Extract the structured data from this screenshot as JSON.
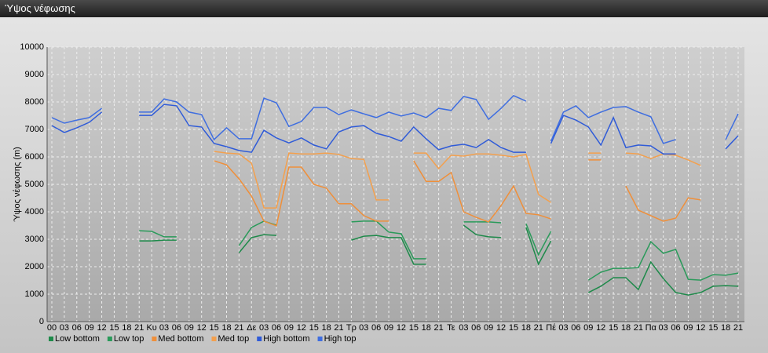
{
  "window_title": "Ύψος νέφωσης",
  "chart_data": {
    "type": "line",
    "ylabel": "Ύψος νέφωσης (m)",
    "categories": [
      "00",
      "03",
      "06",
      "09",
      "12",
      "15",
      "18",
      "21",
      "Κυ",
      "03",
      "06",
      "09",
      "12",
      "15",
      "18",
      "21",
      "Δε",
      "03",
      "06",
      "09",
      "12",
      "15",
      "18",
      "21",
      "Τρ",
      "03",
      "06",
      "09",
      "12",
      "15",
      "18",
      "21",
      "Τε",
      "03",
      "06",
      "09",
      "12",
      "15",
      "18",
      "21",
      "Πέ",
      "03",
      "06",
      "09",
      "12",
      "15",
      "18",
      "21",
      "Πα",
      "03",
      "06",
      "09",
      "12",
      "15",
      "18",
      "21"
    ],
    "ylim": [
      0,
      10000
    ],
    "yticks": [
      0,
      1000,
      2000,
      3000,
      4000,
      5000,
      6000,
      7000,
      8000,
      9000,
      10000
    ],
    "grid": true,
    "legend": "bottom",
    "series": [
      {
        "name": "Low bottom",
        "color": "#1e8a4a",
        "values": [
          null,
          null,
          null,
          null,
          null,
          null,
          null,
          2940,
          2940,
          2970,
          2970,
          null,
          null,
          null,
          null,
          2510,
          3060,
          3170,
          3140,
          null,
          null,
          null,
          null,
          null,
          2970,
          3110,
          3140,
          3060,
          3060,
          2090,
          2090,
          null,
          null,
          3510,
          3170,
          3090,
          3060,
          null,
          3430,
          2090,
          2940,
          null,
          null,
          1060,
          1290,
          1600,
          1600,
          1170,
          2170,
          1570,
          1060,
          970,
          1060,
          1290,
          1310,
          1290
        ]
      },
      {
        "name": "Low top",
        "color": "#2a9a5a",
        "values": [
          null,
          null,
          null,
          null,
          null,
          null,
          null,
          3310,
          3290,
          3090,
          3090,
          null,
          null,
          null,
          null,
          2770,
          3430,
          3660,
          3510,
          null,
          null,
          null,
          null,
          null,
          3630,
          3660,
          3660,
          3260,
          3200,
          2290,
          2290,
          null,
          null,
          3630,
          3630,
          3630,
          3600,
          null,
          3570,
          2430,
          3290,
          null,
          null,
          1510,
          1800,
          1940,
          1940,
          1970,
          2910,
          2490,
          2630,
          1540,
          1510,
          1710,
          1690,
          1770
        ]
      },
      {
        "name": "Med bottom",
        "color": "#ef8f3a",
        "values": [
          null,
          null,
          null,
          null,
          null,
          null,
          null,
          null,
          null,
          null,
          null,
          null,
          null,
          5860,
          5710,
          5200,
          4570,
          3660,
          3490,
          5630,
          5630,
          5000,
          4860,
          4290,
          4290,
          3860,
          3660,
          3660,
          null,
          5860,
          5110,
          5110,
          5430,
          4000,
          3800,
          3630,
          4230,
          4940,
          3940,
          3890,
          3740,
          null,
          null,
          5890,
          5890,
          null,
          4940,
          4060,
          3860,
          3660,
          3770,
          4510,
          4430,
          null,
          null,
          null
        ]
      },
      {
        "name": "Med top",
        "color": "#f3a04e",
        "values": [
          null,
          null,
          null,
          null,
          null,
          null,
          null,
          null,
          null,
          null,
          null,
          null,
          null,
          6200,
          6140,
          6110,
          5770,
          4140,
          4140,
          6140,
          6110,
          6110,
          6140,
          6090,
          5940,
          5910,
          4430,
          4430,
          null,
          6140,
          6140,
          5570,
          6060,
          6030,
          6110,
          6110,
          6060,
          6000,
          6090,
          4630,
          4340,
          null,
          null,
          6140,
          6140,
          null,
          6140,
          6110,
          5940,
          6110,
          6060,
          5890,
          5690,
          null,
          null,
          null
        ]
      },
      {
        "name": "High bottom",
        "color": "#2f5bd8",
        "values": [
          7140,
          6890,
          7060,
          7260,
          7630,
          null,
          null,
          7510,
          7510,
          7910,
          7860,
          7140,
          7090,
          6490,
          6370,
          6230,
          6170,
          6970,
          6690,
          6510,
          6690,
          6430,
          6290,
          6910,
          7090,
          7140,
          6860,
          6740,
          6570,
          7090,
          6660,
          6260,
          6400,
          6460,
          6340,
          6630,
          6340,
          6170,
          6170,
          null,
          6490,
          7510,
          7340,
          7090,
          6430,
          7430,
          6340,
          6430,
          6400,
          6110,
          6110,
          null,
          null,
          null,
          6290,
          6770
        ]
      },
      {
        "name": "High top",
        "color": "#3f6ee0",
        "values": [
          7430,
          7230,
          7340,
          7430,
          7770,
          null,
          null,
          7630,
          7630,
          8110,
          8000,
          7630,
          7540,
          6630,
          7060,
          6660,
          6660,
          8140,
          7970,
          7110,
          7290,
          7800,
          7800,
          7540,
          7710,
          7570,
          7430,
          7630,
          7490,
          7600,
          7430,
          7770,
          7690,
          8200,
          8090,
          7370,
          7770,
          8230,
          8030,
          null,
          6570,
          7630,
          7860,
          7430,
          7630,
          7800,
          7830,
          7630,
          7460,
          6490,
          6630,
          null,
          null,
          null,
          6630,
          7570
        ]
      }
    ]
  }
}
